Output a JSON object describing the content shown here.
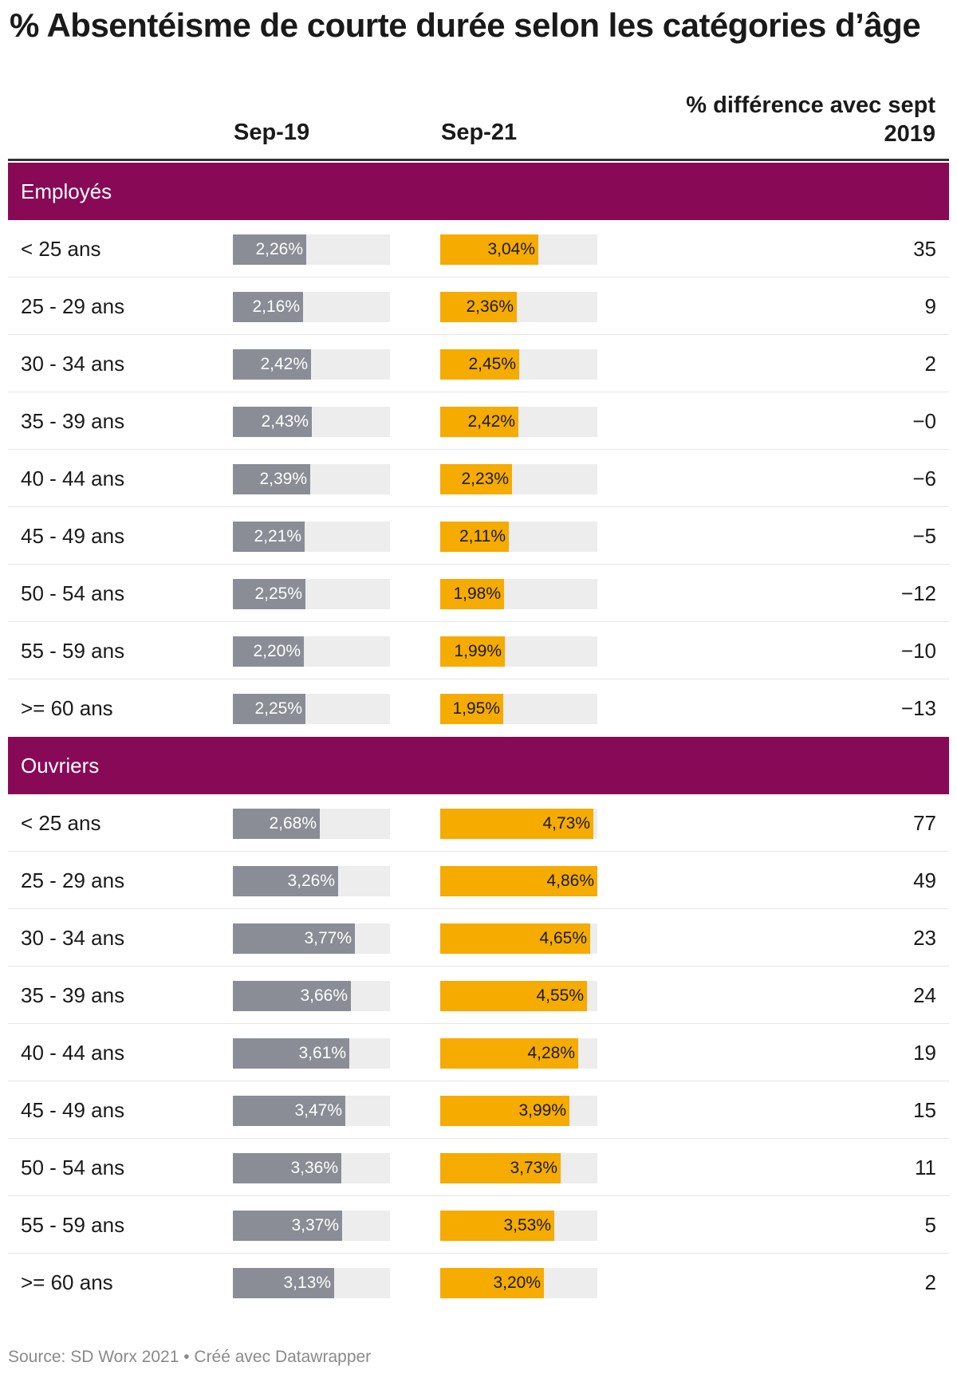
{
  "chart_data": {
    "type": "table",
    "title": "% Absentéisme de courte durée selon les catégories d’âge",
    "columns": {
      "label": "",
      "sep19": "Sep-19",
      "sep21": "Sep-21",
      "diff": "% différence avec sept 2019"
    },
    "scale_max": 4.86,
    "groups": [
      {
        "name": "Employés",
        "rows": [
          {
            "label": "< 25 ans",
            "sep19": 2.26,
            "sep19_text": "2,26%",
            "sep21": 3.04,
            "sep21_text": "3,04%",
            "diff": "35"
          },
          {
            "label": "25 - 29 ans",
            "sep19": 2.16,
            "sep19_text": "2,16%",
            "sep21": 2.36,
            "sep21_text": "2,36%",
            "diff": "9"
          },
          {
            "label": "30 - 34 ans",
            "sep19": 2.42,
            "sep19_text": "2,42%",
            "sep21": 2.45,
            "sep21_text": "2,45%",
            "diff": "2"
          },
          {
            "label": "35 - 39 ans",
            "sep19": 2.43,
            "sep19_text": "2,43%",
            "sep21": 2.42,
            "sep21_text": "2,42%",
            "diff": "−0"
          },
          {
            "label": "40 - 44 ans",
            "sep19": 2.39,
            "sep19_text": "2,39%",
            "sep21": 2.23,
            "sep21_text": "2,23%",
            "diff": "−6"
          },
          {
            "label": "45 - 49 ans",
            "sep19": 2.21,
            "sep19_text": "2,21%",
            "sep21": 2.11,
            "sep21_text": "2,11%",
            "diff": "−5"
          },
          {
            "label": "50 - 54 ans",
            "sep19": 2.25,
            "sep19_text": "2,25%",
            "sep21": 1.98,
            "sep21_text": "1,98%",
            "diff": "−12"
          },
          {
            "label": "55 - 59 ans",
            "sep19": 2.2,
            "sep19_text": "2,20%",
            "sep21": 1.99,
            "sep21_text": "1,99%",
            "diff": "−10"
          },
          {
            "label": ">= 60 ans",
            "sep19": 2.25,
            "sep19_text": "2,25%",
            "sep21": 1.95,
            "sep21_text": "1,95%",
            "diff": "−13"
          }
        ]
      },
      {
        "name": "Ouvriers",
        "rows": [
          {
            "label": "< 25 ans",
            "sep19": 2.68,
            "sep19_text": "2,68%",
            "sep21": 4.73,
            "sep21_text": "4,73%",
            "diff": "77"
          },
          {
            "label": "25 - 29 ans",
            "sep19": 3.26,
            "sep19_text": "3,26%",
            "sep21": 4.86,
            "sep21_text": "4,86%",
            "diff": "49"
          },
          {
            "label": "30 - 34 ans",
            "sep19": 3.77,
            "sep19_text": "3,77%",
            "sep21": 4.65,
            "sep21_text": "4,65%",
            "diff": "23"
          },
          {
            "label": "35 - 39 ans",
            "sep19": 3.66,
            "sep19_text": "3,66%",
            "sep21": 4.55,
            "sep21_text": "4,55%",
            "diff": "24"
          },
          {
            "label": "40 - 44 ans",
            "sep19": 3.61,
            "sep19_text": "3,61%",
            "sep21": 4.28,
            "sep21_text": "4,28%",
            "diff": "19"
          },
          {
            "label": "45 - 49 ans",
            "sep19": 3.47,
            "sep19_text": "3,47%",
            "sep21": 3.99,
            "sep21_text": "3,99%",
            "diff": "15"
          },
          {
            "label": "50 - 54 ans",
            "sep19": 3.36,
            "sep19_text": "3,36%",
            "sep21": 3.73,
            "sep21_text": "3,73%",
            "diff": "11"
          },
          {
            "label": "55 - 59 ans",
            "sep19": 3.37,
            "sep19_text": "3,37%",
            "sep21": 3.53,
            "sep21_text": "3,53%",
            "diff": "5"
          },
          {
            "label": ">= 60 ans",
            "sep19": 3.13,
            "sep19_text": "3,13%",
            "sep21": 3.2,
            "sep21_text": "3,20%",
            "diff": "2"
          }
        ]
      }
    ],
    "colors": {
      "sep19": "#8a8d96",
      "sep21": "#f5ab00",
      "group_header": "#880a56",
      "track": "#ededed"
    }
  },
  "footer": {
    "source": "Source: SD Worx 2021 • Créé avec Datawrapper"
  }
}
